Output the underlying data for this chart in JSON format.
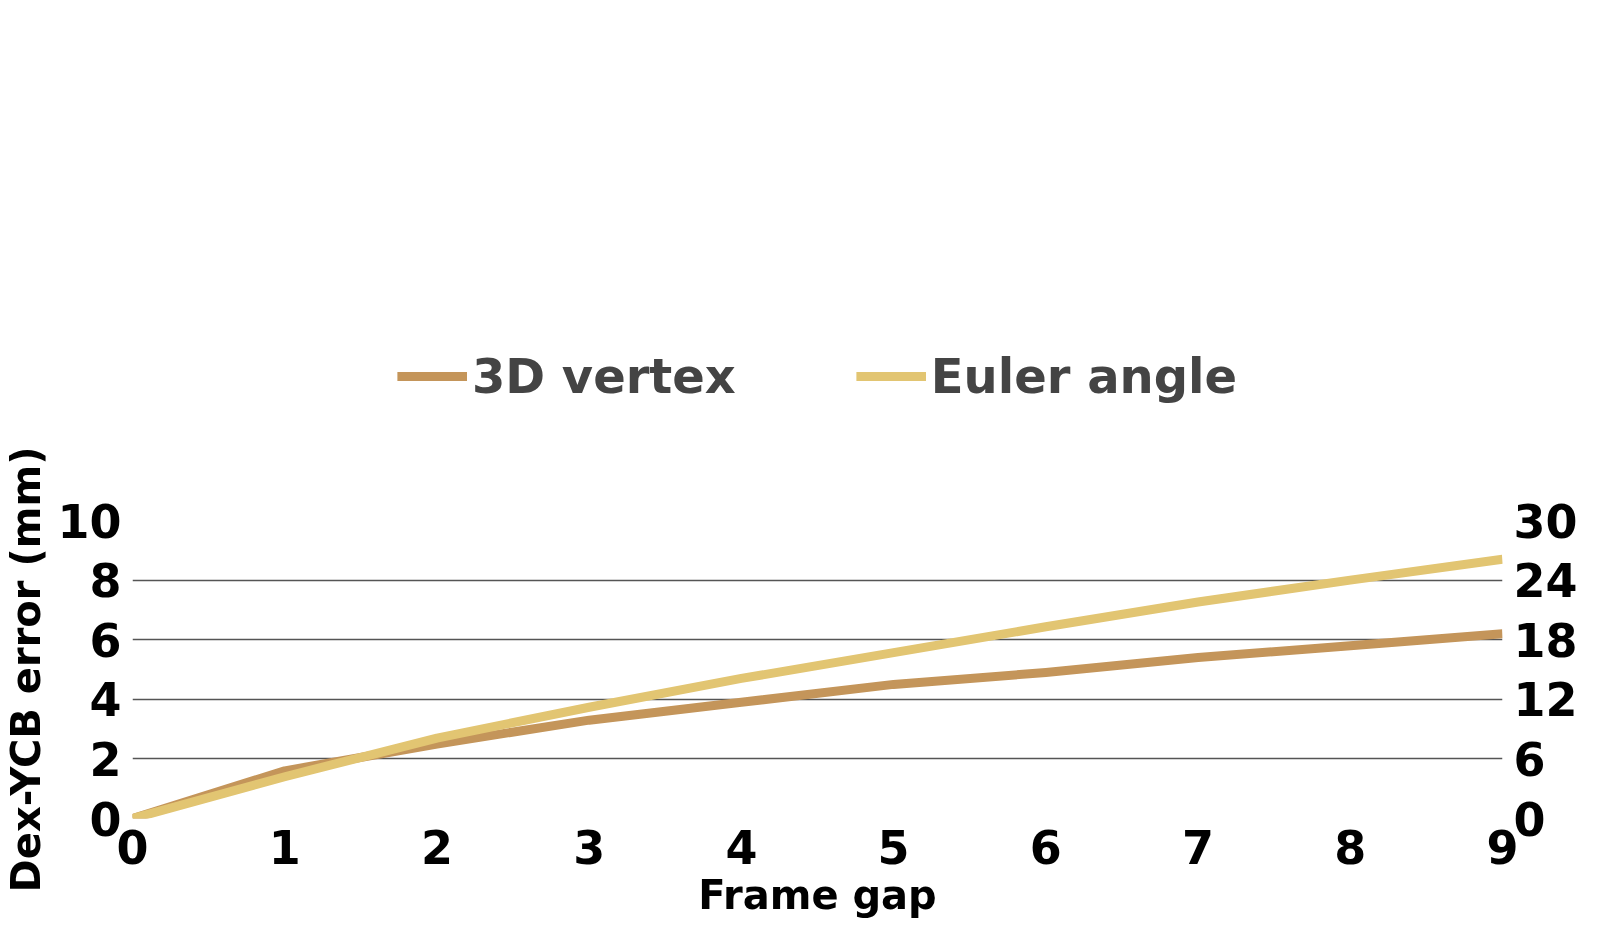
{
  "chart_data": {
    "type": "line",
    "xlabel": "Frame gap",
    "ylabel": "Dex-YCB error (mm)",
    "x": [
      0,
      1,
      2,
      3,
      4,
      5,
      6,
      7,
      8,
      9
    ],
    "series": [
      {
        "name": "3D vertex",
        "color": "#c4955a",
        "values": [
          0,
          1.6,
          2.5,
          3.3,
          3.9,
          4.5,
          4.9,
          5.4,
          5.8,
          6.2
        ]
      },
      {
        "name": "Euler angle",
        "color": "#e2c572",
        "axis": "y2",
        "values": [
          0,
          4.2,
          8.1,
          11.2,
          14.1,
          16.7,
          19.3,
          21.8,
          24.0,
          26.1
        ]
      }
    ],
    "xlim": [
      0,
      9
    ],
    "xticks": [
      0,
      1,
      2,
      3,
      4,
      5,
      6,
      7,
      8,
      9
    ],
    "ylim": [
      0,
      10
    ],
    "yticks": [
      0,
      2,
      4,
      6,
      8,
      10
    ],
    "y2lim": [
      0,
      30
    ],
    "y2ticks": [
      0,
      6,
      12,
      18,
      24,
      30
    ],
    "grid": "y",
    "legend": "top",
    "marker": "none",
    "line_style": "solid"
  }
}
